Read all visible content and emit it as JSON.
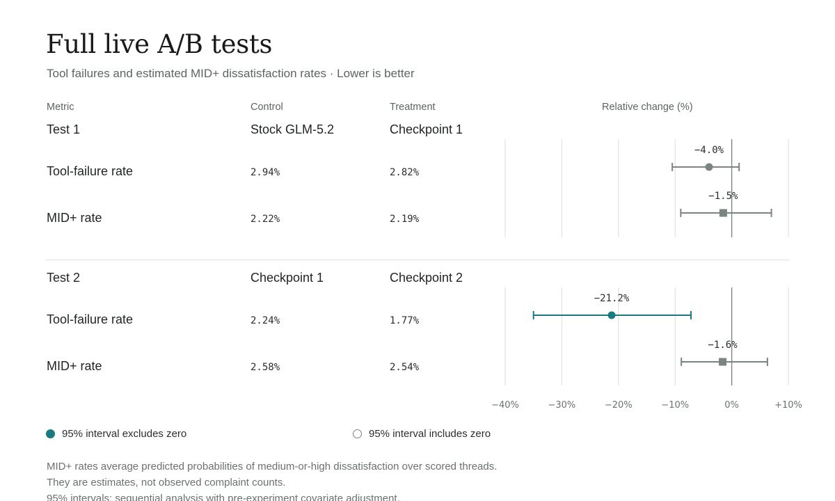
{
  "title": "Full live A/B tests",
  "subtitle": "Tool failures and estimated MID+ dissatisfaction rates · Lower is better",
  "columns": {
    "metric": "Metric",
    "control": "Control",
    "treatment": "Treatment",
    "change": "Relative change (%)"
  },
  "chart_data": {
    "type": "forest",
    "xlabel": "Relative change (%)",
    "xlim": [
      -40,
      10
    ],
    "ticks": [
      -40,
      -30,
      -20,
      -10,
      0,
      10
    ],
    "tick_labels": [
      "−40%",
      "−30%",
      "−20%",
      "−10%",
      "0%",
      "+10%"
    ],
    "groups": [
      {
        "name": "Test 1",
        "control": "Stock GLM-5.2",
        "treatment": "Checkpoint 1",
        "rows": [
          {
            "metric": "Tool-failure rate",
            "control_value": "2.94%",
            "treatment_value": "2.82%",
            "estimate": -4.0,
            "ci_low": -10.5,
            "ci_high": 1.3,
            "label": "−4.0%",
            "marker": "circle",
            "excludes_zero": false
          },
          {
            "metric": "MID+ rate",
            "control_value": "2.22%",
            "treatment_value": "2.19%",
            "estimate": -1.5,
            "ci_low": -9.0,
            "ci_high": 7.0,
            "label": "−1.5%",
            "marker": "square",
            "excludes_zero": false
          }
        ]
      },
      {
        "name": "Test 2",
        "control": "Checkpoint 1",
        "treatment": "Checkpoint 2",
        "rows": [
          {
            "metric": "Tool-failure rate",
            "control_value": "2.24%",
            "treatment_value": "1.77%",
            "estimate": -21.2,
            "ci_low": -35.0,
            "ci_high": -7.2,
            "label": "−21.2%",
            "marker": "circle",
            "excludes_zero": true
          },
          {
            "metric": "MID+ rate",
            "control_value": "2.58%",
            "treatment_value": "2.54%",
            "estimate": -1.6,
            "ci_low": -8.9,
            "ci_high": 6.3,
            "label": "−1.6%",
            "marker": "square",
            "excludes_zero": false
          }
        ]
      }
    ]
  },
  "legend": {
    "excludes_zero": "95% interval excludes zero",
    "includes_zero": "95% interval includes zero"
  },
  "notes": [
    "MID+ rates average predicted probabilities of medium-or-high dissatisfaction over scored threads.",
    "They are estimates, not observed complaint counts.",
    "95% intervals: sequential analysis with pre-experiment covariate adjustment."
  ],
  "colors": {
    "significant": "#1b7a80",
    "nonsignificant": "#7a8481",
    "grid": "#dcdcdc",
    "zero_line": "#7d8380"
  }
}
